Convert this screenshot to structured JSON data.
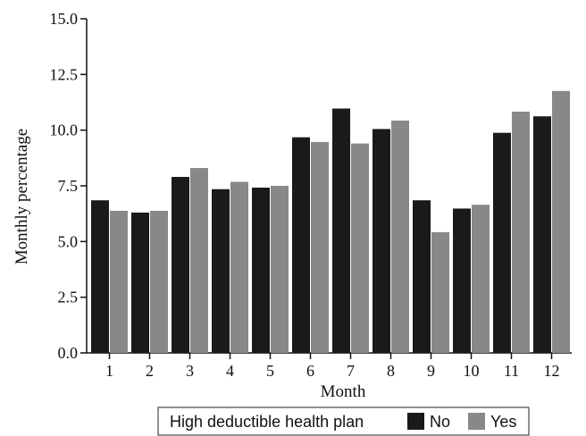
{
  "chart_data": {
    "type": "bar",
    "categories": [
      "1",
      "2",
      "3",
      "4",
      "5",
      "6",
      "7",
      "8",
      "9",
      "10",
      "11",
      "12"
    ],
    "series": [
      {
        "name": "No",
        "color": "#1a1a1a",
        "values": [
          6.85,
          6.3,
          7.9,
          7.35,
          7.42,
          9.68,
          10.97,
          10.05,
          6.85,
          6.48,
          9.88,
          10.62
        ]
      },
      {
        "name": "Yes",
        "color": "#888888",
        "values": [
          6.38,
          6.38,
          8.3,
          7.68,
          7.5,
          9.47,
          9.4,
          10.43,
          5.42,
          6.65,
          10.83,
          11.76
        ]
      }
    ],
    "xlabel": "Month",
    "ylabel": "Monthly percentage",
    "ylim": [
      0,
      15
    ],
    "yticks": [
      "0.0",
      "2.5",
      "5.0",
      "7.5",
      "10.0",
      "12.5",
      "15.0"
    ],
    "grid": false,
    "legend": {
      "title": "High deductible health plan",
      "position": "bottom-center"
    }
  }
}
